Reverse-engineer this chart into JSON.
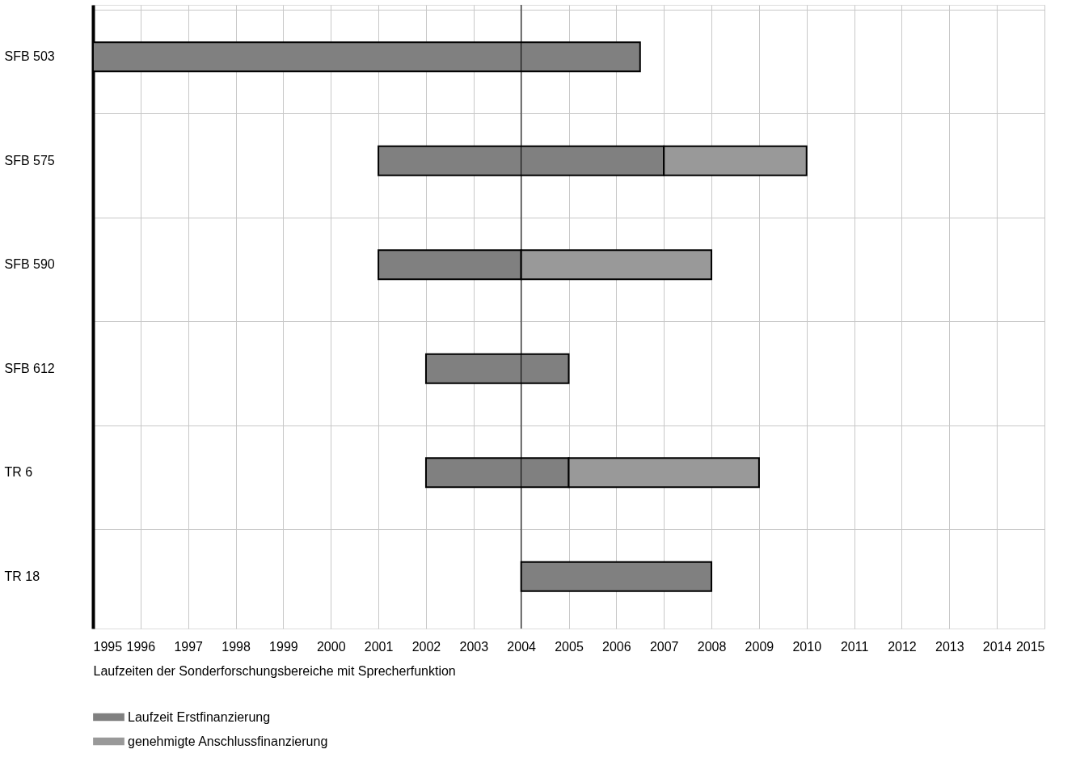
{
  "chart_data": {
    "type": "bar",
    "orientation": "horizontal",
    "xlabel": "Laufzeiten der Sonderforschungsbereiche mit Sprecherfunktion",
    "categories": [
      "SFB 503",
      "SFB 575",
      "SFB 590",
      "SFB 612",
      "TR 6",
      "TR 18"
    ],
    "series": [
      {
        "name": "Laufzeit Erstfinanzierung",
        "color": "#808080",
        "base": [
          1995,
          2001,
          2001,
          2002,
          2002,
          2004
        ],
        "values": [
          11.5,
          6,
          3,
          3,
          3,
          4
        ]
      },
      {
        "name": "genehmigte Anschlussfinanzierung",
        "color": "#999999",
        "base": [
          null,
          2007,
          2004,
          null,
          2005,
          null
        ],
        "values": [
          null,
          3,
          4,
          null,
          4,
          null
        ]
      }
    ],
    "xlim": [
      1995,
      2015
    ],
    "xticks": [
      1995,
      1996,
      1997,
      1998,
      1999,
      2000,
      2001,
      2002,
      2003,
      2004,
      2005,
      2006,
      2007,
      2008,
      2009,
      2010,
      2011,
      2012,
      2013,
      2014,
      2015
    ],
    "ref_lines": [
      {
        "axis": "x",
        "value": 2004,
        "color": "#000000"
      }
    ],
    "grid": true,
    "legend": "bottom"
  }
}
